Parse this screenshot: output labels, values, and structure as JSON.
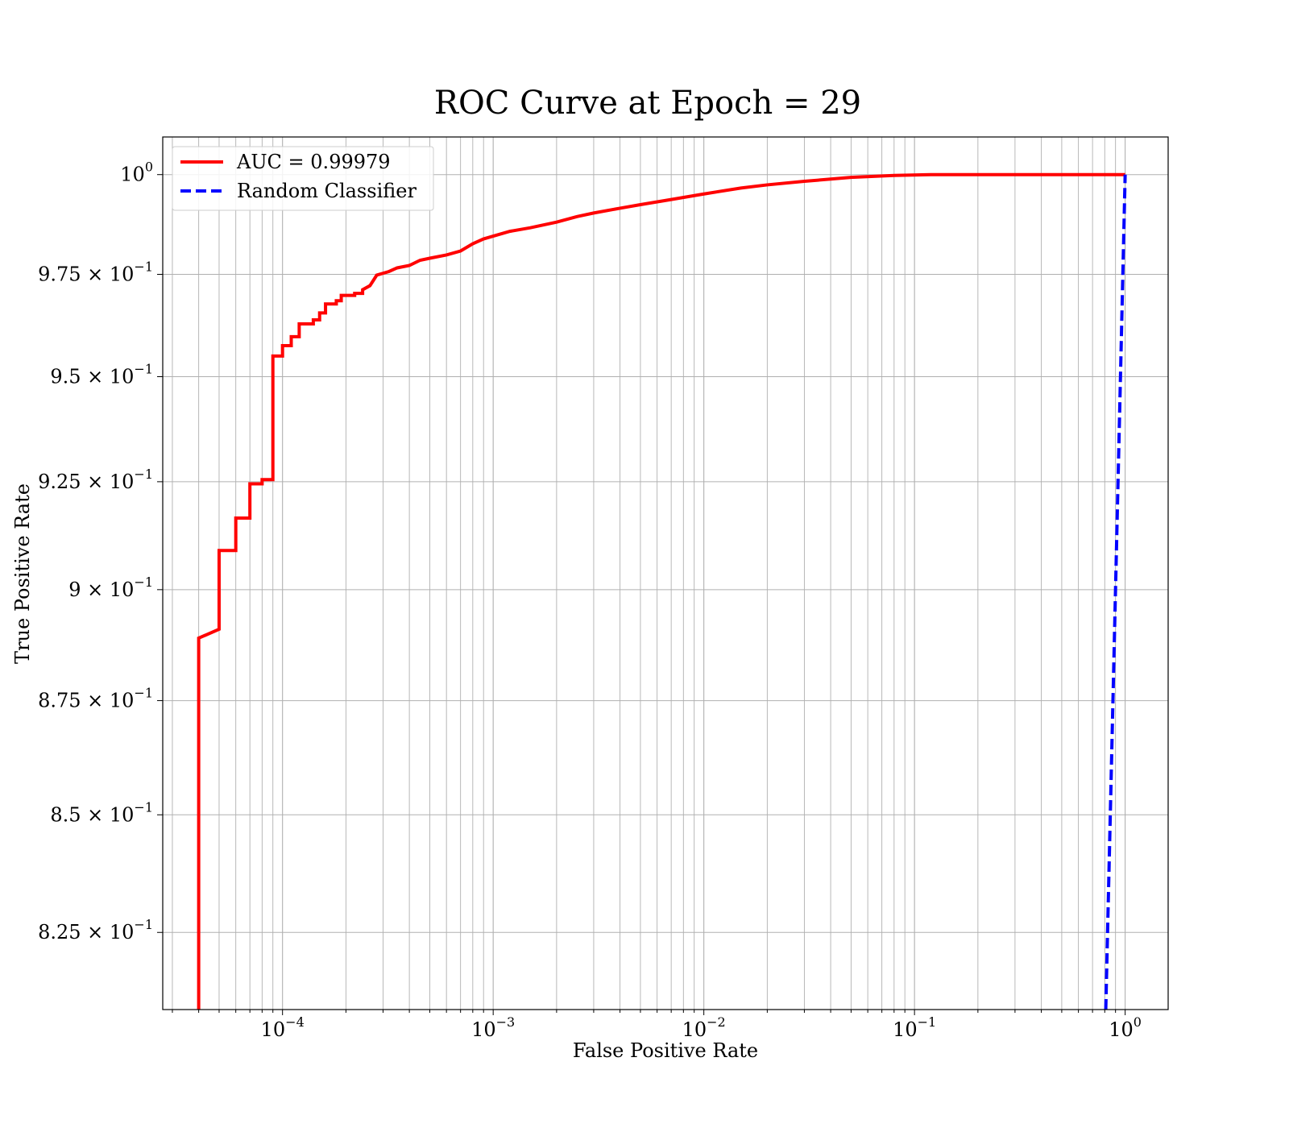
{
  "chart_data": {
    "type": "line",
    "title": "ROC Curve at Epoch = 29",
    "xlabel": "False Positive Rate",
    "ylabel": "True Positive Rate",
    "xscale": "log",
    "yscale": "log",
    "xlim": [
      2.7e-05,
      1.6
    ],
    "ylim": [
      0.809,
      1.0096
    ],
    "grid": true,
    "legend_position": "upper-left",
    "x_ticks": [
      {
        "value": 0.0001,
        "base": "10",
        "exp": "−4"
      },
      {
        "value": 0.001,
        "base": "10",
        "exp": "−3"
      },
      {
        "value": 0.01,
        "base": "10",
        "exp": "−2"
      },
      {
        "value": 0.1,
        "base": "10",
        "exp": "−1"
      },
      {
        "value": 1,
        "base": "10",
        "exp": "0"
      }
    ],
    "y_ticks": [
      {
        "value": 1.0,
        "base": "10",
        "exp": "0"
      },
      {
        "value": 0.975,
        "base": "9.75 × 10",
        "exp": "−1"
      },
      {
        "value": 0.95,
        "base": "9.5 × 10",
        "exp": "−1"
      },
      {
        "value": 0.925,
        "base": "9.25 × 10",
        "exp": "−1"
      },
      {
        "value": 0.9,
        "base": "9 × 10",
        "exp": "−1"
      },
      {
        "value": 0.875,
        "base": "8.75 × 10",
        "exp": "−1"
      },
      {
        "value": 0.85,
        "base": "8.5 × 10",
        "exp": "−1"
      },
      {
        "value": 0.825,
        "base": "8.25 × 10",
        "exp": "−1"
      }
    ],
    "series": [
      {
        "name": "AUC = 0.99979",
        "color": "#ff0000",
        "style": "solid",
        "points": [
          [
            4e-05,
            0.809
          ],
          [
            4e-05,
            0.819
          ],
          [
            4e-05,
            0.889
          ],
          [
            5e-05,
            0.891
          ],
          [
            5e-05,
            0.909
          ],
          [
            6e-05,
            0.909
          ],
          [
            6e-05,
            0.9165
          ],
          [
            7e-05,
            0.9165
          ],
          [
            7e-05,
            0.9245
          ],
          [
            8e-05,
            0.9245
          ],
          [
            8e-05,
            0.9255
          ],
          [
            9e-05,
            0.9255
          ],
          [
            9e-05,
            0.955
          ],
          [
            0.0001,
            0.955
          ],
          [
            0.0001,
            0.9575
          ],
          [
            0.00011,
            0.9575
          ],
          [
            0.00011,
            0.9597
          ],
          [
            0.00012,
            0.9597
          ],
          [
            0.00012,
            0.9628
          ],
          [
            0.00014,
            0.9628
          ],
          [
            0.00014,
            0.9638
          ],
          [
            0.00015,
            0.9638
          ],
          [
            0.00015,
            0.9655
          ],
          [
            0.00016,
            0.9655
          ],
          [
            0.00016,
            0.9677
          ],
          [
            0.00018,
            0.9677
          ],
          [
            0.00018,
            0.9685
          ],
          [
            0.00019,
            0.9685
          ],
          [
            0.00019,
            0.9698
          ],
          [
            0.00022,
            0.9698
          ],
          [
            0.00022,
            0.9703
          ],
          [
            0.00024,
            0.9703
          ],
          [
            0.00024,
            0.9712
          ],
          [
            0.00026,
            0.9722
          ],
          [
            0.00027,
            0.9735
          ],
          [
            0.00028,
            0.9748
          ],
          [
            0.00032,
            0.9757
          ],
          [
            0.00035,
            0.9766
          ],
          [
            0.0004,
            0.9772
          ],
          [
            0.00045,
            0.9785
          ],
          [
            0.0005,
            0.979
          ],
          [
            0.0006,
            0.9798
          ],
          [
            0.0007,
            0.9808
          ],
          [
            0.0008,
            0.9826
          ],
          [
            0.0009,
            0.9838
          ],
          [
            0.001,
            0.9845
          ],
          [
            0.0012,
            0.9857
          ],
          [
            0.0015,
            0.9866
          ],
          [
            0.002,
            0.988
          ],
          [
            0.0025,
            0.9894
          ],
          [
            0.003,
            0.9903
          ],
          [
            0.004,
            0.9915
          ],
          [
            0.005,
            0.9924
          ],
          [
            0.007,
            0.9937
          ],
          [
            0.01,
            0.9951
          ],
          [
            0.015,
            0.9966
          ],
          [
            0.02,
            0.9974
          ],
          [
            0.03,
            0.9983
          ],
          [
            0.05,
            0.9993
          ],
          [
            0.08,
            0.9998
          ],
          [
            0.12,
            1.0
          ],
          [
            1.0,
            1.0
          ]
        ]
      },
      {
        "name": "Random Classifier",
        "color": "#0000ff",
        "style": "dashed",
        "points": [
          [
            0.809,
            0.809
          ],
          [
            1.0,
            1.0
          ]
        ]
      }
    ]
  }
}
